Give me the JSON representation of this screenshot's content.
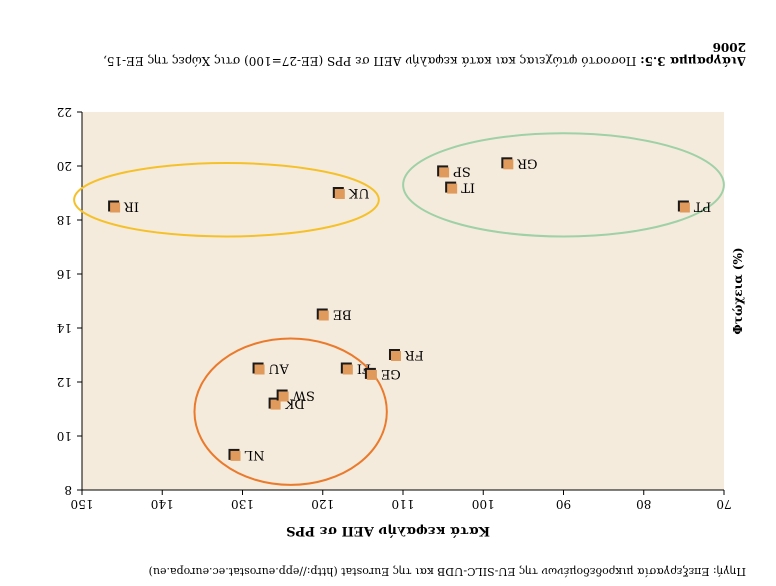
{
  "source_note": "Πηγή: Επεξεργασία μικροδεδομένων της EU-SILC-UDB και της Eurostat (http://epp.eurostat.ec.europa.eu)",
  "caption": {
    "line1_bold": "Διάγραμμα 3.5:",
    "line1_text": "Ποσοστό φτώχειας και κατά κεφαλήν ΑΕΠ σε PPS (ΕΕ-27=100) στις Χώρες της ΕΕ-15,",
    "line2": "2006"
  },
  "chart_data": {
    "type": "scatter",
    "xlabel": "Κατά κεφαλήν ΑΕΠ σε PPS",
    "ylabel": "Φτώχεια (%)",
    "xlim": [
      70,
      150
    ],
    "ylim": [
      8,
      22
    ],
    "x_ticks": [
      "70",
      "80",
      "90",
      "100",
      "110",
      "120",
      "130",
      "140",
      "150"
    ],
    "y_ticks": [
      "8",
      "10",
      "12",
      "14",
      "16",
      "18",
      "20",
      "22"
    ],
    "points": [
      {
        "label": "NL",
        "x": 131,
        "y": 9.3
      },
      {
        "label": "DK",
        "x": 126,
        "y": 11.2
      },
      {
        "label": "SW",
        "x": 125,
        "y": 11.5
      },
      {
        "label": "AU",
        "x": 128,
        "y": 12.5
      },
      {
        "label": "FI",
        "x": 117,
        "y": 12.5
      },
      {
        "label": "GE",
        "x": 114,
        "y": 12.3
      },
      {
        "label": "FR",
        "x": 111,
        "y": 13.0
      },
      {
        "label": "BE",
        "x": 120,
        "y": 14.5
      },
      {
        "label": "PT",
        "x": 75,
        "y": 18.5
      },
      {
        "label": "IT",
        "x": 104,
        "y": 19.2
      },
      {
        "label": "SP",
        "x": 105,
        "y": 19.8
      },
      {
        "label": "GR",
        "x": 97,
        "y": 20.1
      },
      {
        "label": "UK",
        "x": 118,
        "y": 19.0
      },
      {
        "label": "IR",
        "x": 146,
        "y": 18.5
      }
    ],
    "groups": [
      {
        "members": [
          "NL",
          "DK",
          "SW",
          "AU",
          "FI"
        ],
        "color": "#ea7a2c"
      },
      {
        "members": [
          "PT",
          "IT",
          "SP",
          "GR"
        ],
        "color": "#9ed1a6"
      },
      {
        "members": [
          "UK",
          "IR"
        ],
        "color": "#f5c12a"
      }
    ],
    "plot_background": "#f5ebdc",
    "marker_color": "#e09a5b",
    "grid": false
  }
}
